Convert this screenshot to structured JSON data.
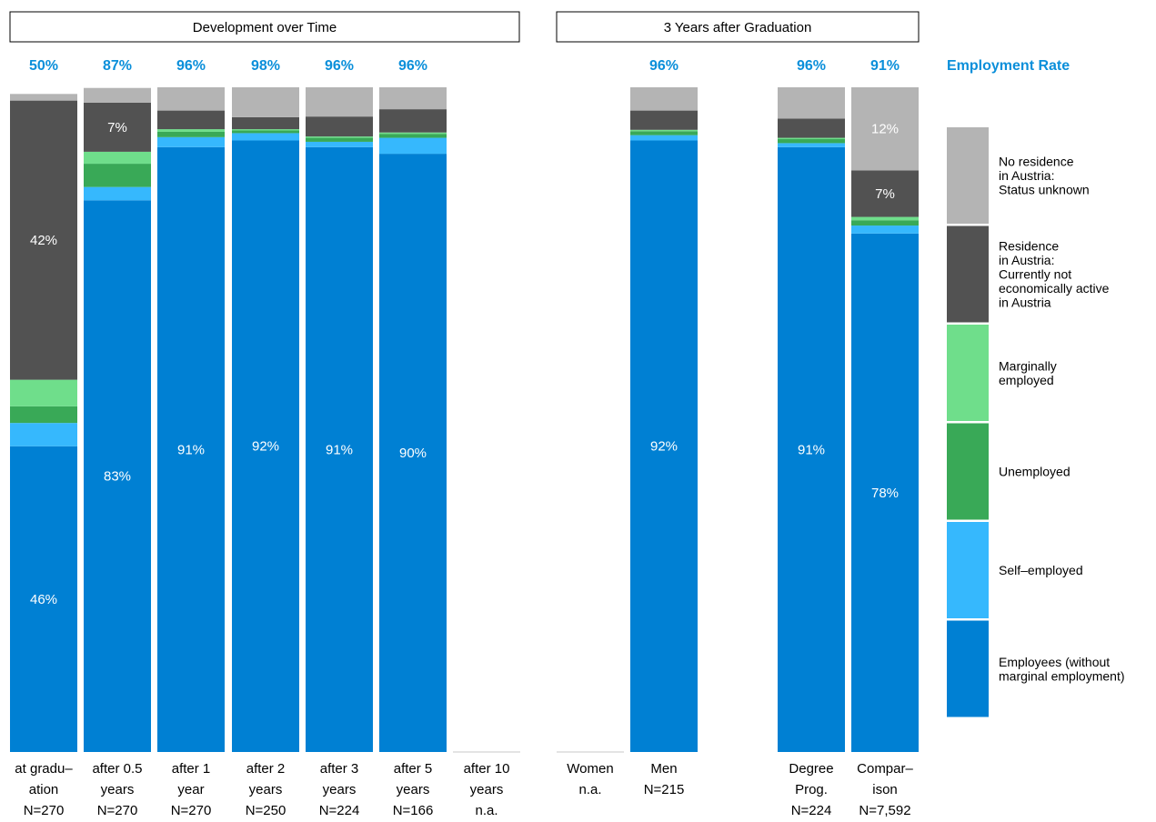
{
  "chart_data": {
    "type": "bar",
    "stacked": true,
    "panels": [
      {
        "title": "Development over Time",
        "categories": [
          "at gradu–ation",
          "after 0.5 years",
          "after 1 year",
          "after 2 years",
          "after 3 years",
          "after 5 years",
          "after 10 years"
        ]
      },
      {
        "title": "3 Years after Graduation",
        "categories": [
          "Women",
          "Men",
          "Degree Prog.",
          "Compar–ison"
        ]
      }
    ],
    "rate_title": "Employment Rate",
    "columns": [
      {
        "label": [
          "at gradu–",
          "ation",
          "N=270"
        ],
        "rate": "50%",
        "values": [
          46,
          3.5,
          2.5,
          4,
          42,
          1
        ],
        "labels": [
          "46%",
          "",
          "",
          "",
          "42%",
          ""
        ]
      },
      {
        "label": [
          "after 0.5",
          "years",
          "N=270"
        ],
        "rate": "87%",
        "values": [
          83,
          2,
          3.5,
          1.8,
          7.4,
          2.2
        ],
        "labels": [
          "83%",
          "",
          "",
          "",
          "7%",
          ""
        ]
      },
      {
        "label": [
          "after 1",
          "year",
          "N=270"
        ],
        "rate": "96%",
        "values": [
          91,
          1.5,
          0.8,
          0.4,
          2.8,
          3.5
        ],
        "labels": [
          "91%",
          "",
          "",
          "",
          "",
          ""
        ]
      },
      {
        "label": [
          "after 2",
          "years",
          "N=250"
        ],
        "rate": "98%",
        "values": [
          92,
          1.1,
          0.4,
          0.2,
          1.8,
          4.5
        ],
        "labels": [
          "92%",
          "",
          "",
          "",
          "",
          ""
        ]
      },
      {
        "label": [
          "after 3",
          "years",
          "N=224"
        ],
        "rate": "96%",
        "values": [
          91,
          0.8,
          0.6,
          0.2,
          3,
          4.4
        ],
        "labels": [
          "91%",
          "",
          "",
          "",
          "",
          ""
        ]
      },
      {
        "label": [
          "after 5",
          "years",
          "N=166"
        ],
        "rate": "96%",
        "values": [
          90,
          2.4,
          0.6,
          0.2,
          3.5,
          3.3
        ],
        "labels": [
          "90%",
          "",
          "",
          "",
          "",
          ""
        ]
      },
      {
        "label": [
          "after 10",
          "years",
          "n.a."
        ],
        "rate": "",
        "values": [],
        "labels": []
      },
      {
        "label": [
          "Women",
          "n.a.",
          ""
        ],
        "rate": "",
        "values": [],
        "labels": []
      },
      {
        "label": [
          "Men",
          "N=215",
          ""
        ],
        "rate": "96%",
        "values": [
          92,
          0.8,
          0.6,
          0.2,
          2.9,
          3.5
        ],
        "labels": [
          "92%",
          "",
          "",
          "",
          "",
          ""
        ]
      },
      {
        "label": [
          "Degree",
          "Prog.",
          "N=224"
        ],
        "rate": "96%",
        "values": [
          91,
          0.6,
          0.6,
          0.2,
          2.9,
          4.7
        ],
        "labels": [
          "91%",
          "",
          "",
          "",
          "",
          ""
        ]
      },
      {
        "label": [
          "Compar–",
          "ison",
          "N=7,592"
        ],
        "rate": "91%",
        "values": [
          78,
          1.2,
          0.8,
          0.5,
          7,
          12.5
        ],
        "labels": [
          "78%",
          "",
          "",
          "",
          "7%",
          "12%"
        ]
      }
    ],
    "segments": [
      "Employees (without marginal employment)",
      "Self–employed",
      "Unemployed",
      "Marginally employed",
      "Residence in Austria: Currently not economically active in Austria",
      "No residence in Austria: Status unknown"
    ],
    "colors": [
      "#0080d3",
      "#36b8fd",
      "#39a957",
      "#6fde8b",
      "#525252",
      "#b4b4b4"
    ],
    "rate_color": "#0b8fda",
    "legend": [
      {
        "lines": [
          "No residence",
          "in Austria:",
          "Status unknown"
        ],
        "color": "#b4b4b4"
      },
      {
        "lines": [
          "Residence",
          "in Austria:",
          "Currently not",
          "economically active",
          "in Austria"
        ],
        "color": "#525252"
      },
      {
        "lines": [
          "Marginally",
          "employed"
        ],
        "color": "#6fde8b"
      },
      {
        "lines": [
          "Unemployed"
        ],
        "color": "#39a957"
      },
      {
        "lines": [
          "Self–employed"
        ],
        "color": "#36b8fd"
      },
      {
        "lines": [
          "Employees (without",
          "marginal employment)"
        ],
        "color": "#0080d3"
      }
    ]
  }
}
